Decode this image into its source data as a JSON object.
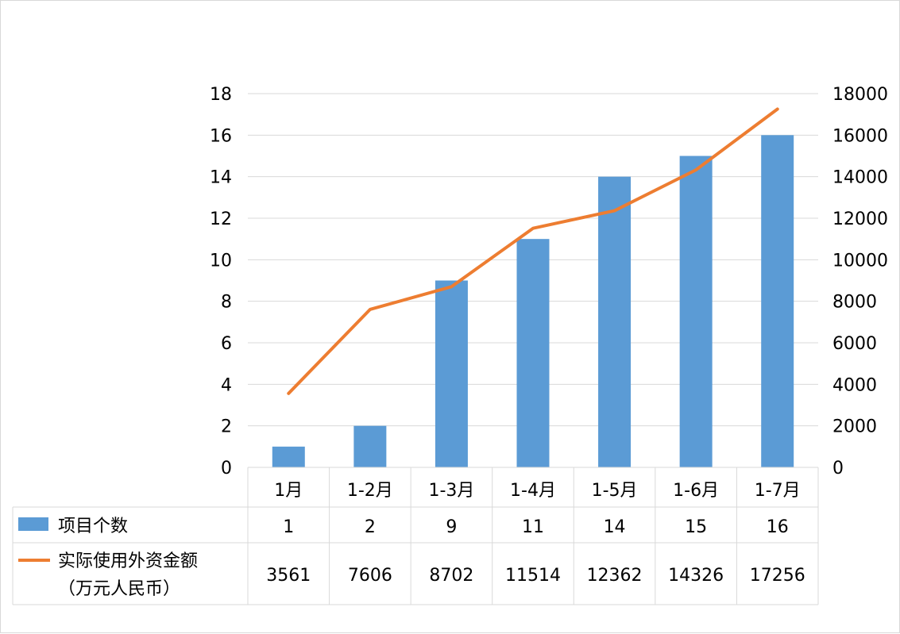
{
  "chart_data": {
    "type": "bar",
    "title": "",
    "categories": [
      "1月",
      "1-2月",
      "1-3月",
      "1-4月",
      "1-5月",
      "1-6月",
      "1-7月"
    ],
    "series": [
      {
        "name": "项目个数",
        "kind": "bar",
        "axis": "left",
        "color": "#5b9bd5",
        "values": [
          1,
          2,
          9,
          11,
          14,
          15,
          16
        ]
      },
      {
        "name": "实际使用外资金额",
        "name_line2": "（万元人民币）",
        "kind": "line",
        "axis": "right",
        "color": "#ed7d31",
        "values": [
          3561,
          7606,
          8702,
          11514,
          12362,
          14326,
          17256
        ]
      }
    ],
    "y_left": {
      "min": 0,
      "max": 18,
      "ticks": [
        "0",
        "2",
        "4",
        "6",
        "8",
        "10",
        "12",
        "14",
        "16",
        "18"
      ]
    },
    "y_right": {
      "min": 0,
      "max": 18000,
      "ticks": [
        "0",
        "2000",
        "4000",
        "6000",
        "8000",
        "10000",
        "12000",
        "14000",
        "16000",
        "18000"
      ]
    },
    "grid": true,
    "legend": "data-table",
    "data_table": {
      "rows": [
        [
          "1",
          "2",
          "9",
          "11",
          "14",
          "15",
          "16"
        ],
        [
          "3561",
          "7606",
          "8702",
          "11514",
          "12362",
          "14326",
          "17256"
        ]
      ]
    }
  }
}
